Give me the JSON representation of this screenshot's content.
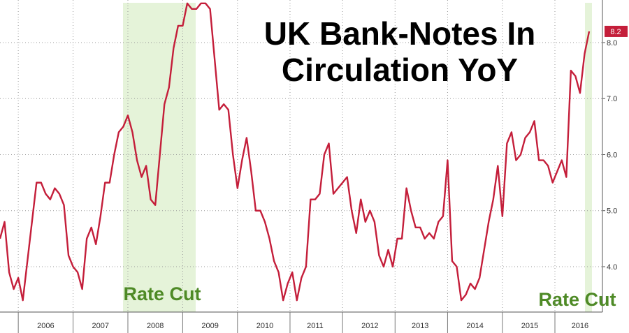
{
  "chart_data": {
    "type": "line",
    "title": "UK Bank-Notes In Circulation YoY",
    "annotations": [
      "Rate Cut",
      "Rate Cut"
    ],
    "categories": [
      null,
      null,
      null,
      null,
      null,
      null,
      null,
      null,
      null,
      null,
      "2006",
      null,
      null,
      null,
      null,
      null,
      null,
      null,
      null,
      null,
      null,
      null,
      "2007",
      null,
      null,
      null,
      null,
      null,
      null,
      null,
      null,
      null,
      null,
      null,
      "2008",
      null,
      null,
      null,
      null,
      null,
      null,
      null,
      null,
      null,
      null,
      null,
      "2009",
      null,
      null,
      null,
      null,
      null,
      null,
      null,
      null,
      null,
      null,
      null,
      "2010",
      null,
      null,
      null,
      null,
      null,
      null,
      null,
      null,
      null,
      null,
      "2011",
      null,
      null,
      null,
      null,
      null,
      null,
      null,
      null,
      null,
      null,
      null,
      "2012",
      null,
      null,
      null,
      null,
      null,
      null,
      null,
      null,
      null,
      null,
      "2013",
      null,
      null,
      null,
      null,
      null,
      null,
      null,
      null,
      null,
      null,
      null,
      "2014",
      null,
      null,
      null,
      null,
      null,
      null,
      null,
      null,
      null,
      null,
      null,
      "2015",
      null,
      null,
      null,
      null,
      null,
      null,
      null,
      null,
      null,
      null,
      "2016",
      null,
      null
    ],
    "values": [
      4.5,
      4.8,
      3.9,
      3.6,
      3.8,
      3.4,
      4.1,
      4.8,
      5.5,
      5.5,
      5.3,
      5.2,
      5.4,
      5.3,
      5.1,
      4.2,
      4.0,
      3.9,
      3.6,
      4.5,
      4.7,
      4.4,
      4.9,
      5.5,
      5.5,
      6.0,
      6.4,
      6.5,
      6.7,
      6.4,
      5.9,
      5.6,
      5.8,
      5.2,
      5.1,
      6.0,
      6.9,
      7.2,
      7.9,
      8.3,
      8.3,
      8.7,
      8.6,
      8.6,
      8.7,
      8.7,
      8.6,
      7.7,
      6.8,
      6.9,
      6.8,
      6.0,
      5.4,
      5.9,
      6.3,
      5.7,
      5.0,
      5.0,
      4.8,
      4.5,
      4.1,
      3.9,
      3.4,
      3.7,
      3.9,
      3.4,
      3.8,
      4.0,
      5.2,
      5.2,
      5.3,
      6.0,
      6.2,
      5.3,
      5.4,
      5.5,
      5.6,
      5.0,
      4.6,
      5.2,
      4.8,
      5.0,
      4.8,
      4.2,
      4.0,
      4.3,
      4.0,
      4.5,
      4.5,
      5.4,
      5.0,
      4.7,
      4.7,
      4.5,
      4.6,
      4.5,
      4.8,
      4.9,
      5.9,
      4.1,
      4.0,
      3.4,
      3.5,
      3.7,
      3.6,
      3.8,
      4.3,
      4.8,
      5.2,
      5.8,
      4.9,
      6.2,
      6.4,
      5.9,
      6.0,
      6.3,
      6.4,
      6.6,
      5.9,
      5.9,
      5.8,
      5.5,
      5.7,
      5.9,
      5.6,
      7.5,
      7.4,
      7.1,
      7.8,
      8.2
    ],
    "value_labels": [
      null,
      null,
      null,
      null,
      null,
      null,
      null,
      null,
      null,
      null,
      null,
      null,
      null,
      null,
      null,
      null,
      null,
      null,
      null,
      null,
      null,
      null,
      null,
      null,
      null,
      null,
      null,
      null,
      null,
      null,
      null,
      null,
      null,
      null,
      null,
      null,
      null,
      null,
      null,
      null,
      null,
      null,
      null,
      null,
      null,
      null,
      null,
      null,
      null,
      null,
      null,
      null,
      null,
      null,
      null,
      null,
      null,
      null,
      null,
      null,
      null,
      null,
      null,
      null,
      null,
      null,
      null,
      null,
      null,
      null,
      null,
      null,
      null,
      null,
      null,
      null,
      null,
      null,
      null,
      null,
      null,
      null,
      null,
      null,
      null,
      null,
      null,
      null,
      null,
      null,
      null,
      null,
      null,
      null,
      null,
      null,
      null,
      null,
      null,
      null,
      null,
      null,
      null,
      null,
      null,
      null,
      null,
      null,
      null,
      null,
      null,
      null,
      null,
      null,
      null,
      null,
      null,
      null,
      null,
      null,
      null,
      null,
      null,
      null,
      null,
      null,
      null,
      null,
      null,
      "8.2"
    ],
    "color": "#c41e3a",
    "ylim": [
      3.19,
      8.76
    ],
    "yticks": [
      {
        "value": 4,
        "label": "4.0"
      },
      {
        "value": 5,
        "label": "5.0"
      },
      {
        "value": 6,
        "label": "6.0"
      },
      {
        "value": 7,
        "label": "7.0"
      },
      {
        "value": 8,
        "label": "8.0"
      }
    ],
    "grid": true
  }
}
